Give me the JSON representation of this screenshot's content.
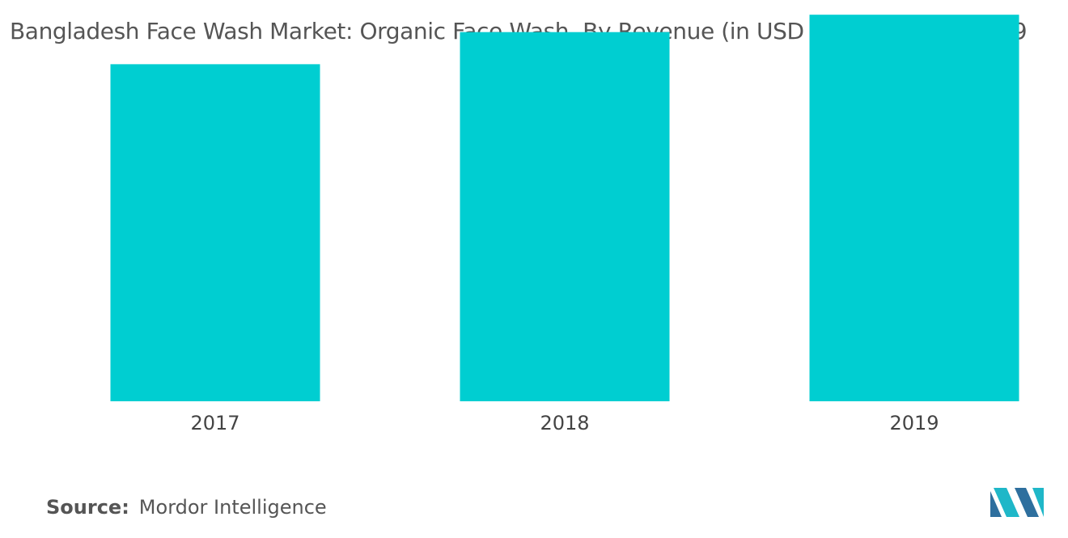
{
  "title": "Bangladesh Face Wash Market: Organic Face Wash, By Revenue (in USD million), 2017-2019",
  "source": {
    "label": "Source:",
    "value": "Mordor Intelligence"
  },
  "logo": {
    "icon": "mordor-intelligence-logo",
    "colors": [
      "#2e6f9e",
      "#1fb7c8"
    ]
  },
  "chart_data": {
    "type": "bar",
    "categories": [
      "2017",
      "2018",
      "2019"
    ],
    "values": [
      252,
      276,
      289
    ],
    "ylim": [
      0,
      300
    ],
    "grid": false,
    "legend": "none",
    "bar_color": "#00ced1"
  }
}
